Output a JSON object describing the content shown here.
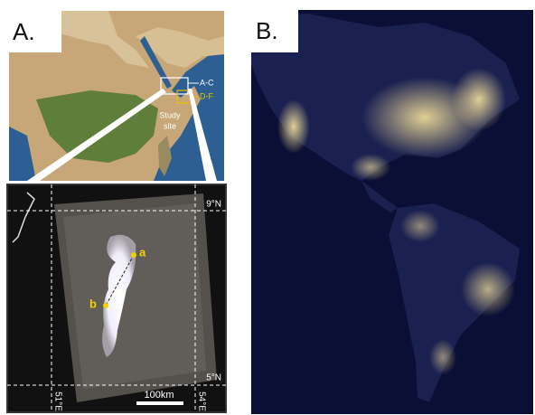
{
  "panel_a": {
    "label": "A.",
    "map": {
      "box_labels": [
        "A-C",
        "D-F"
      ],
      "site_label": [
        "Study",
        "site"
      ]
    },
    "inset": {
      "points": [
        "a",
        "b"
      ],
      "lat_labels": [
        "9°N",
        "5°N"
      ],
      "lon_labels": [
        "51°E",
        "54°E"
      ],
      "scale_label": "100km"
    }
  },
  "panel_b": {
    "label": "B."
  }
}
